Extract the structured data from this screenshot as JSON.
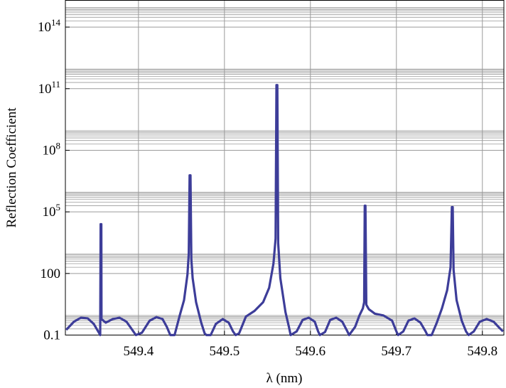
{
  "chart_data": {
    "type": "line",
    "title": "",
    "xlabel": "λ (nm)",
    "ylabel": "Reflection Coefficient",
    "xlim": [
      549.315,
      549.825
    ],
    "ylim": [
      0.1,
      2000000000000000.0
    ],
    "y_scale": "log",
    "grid": true,
    "x_ticks": [
      549.4,
      549.5,
      549.6,
      549.7,
      549.8
    ],
    "x_tick_labels": [
      "549.4",
      "549.5",
      "549.6",
      "549.7",
      "549.8"
    ],
    "y_ticks": [
      0.1,
      100,
      100000,
      100000000,
      100000000000,
      100000000000000
    ],
    "y_tick_labels": [
      {
        "base": "0.1",
        "exp": ""
      },
      {
        "base": "100",
        "exp": ""
      },
      {
        "base": "10",
        "exp": "5"
      },
      {
        "base": "10",
        "exp": "8"
      },
      {
        "base": "10",
        "exp": "11"
      },
      {
        "base": "10",
        "exp": "14"
      }
    ],
    "line_color": "#3d3d99",
    "series": [
      {
        "name": "",
        "points": [
          [
            549.316,
            0.18
          ],
          [
            549.325,
            0.45
          ],
          [
            549.333,
            0.7
          ],
          [
            549.341,
            0.65
          ],
          [
            549.348,
            0.35
          ],
          [
            549.3545,
            0.12
          ],
          [
            549.3555,
            0.1
          ],
          [
            549.356,
            25000
          ],
          [
            549.3568,
            25000
          ],
          [
            549.357,
            0.6
          ],
          [
            549.362,
            0.4
          ],
          [
            549.37,
            0.6
          ],
          [
            549.378,
            0.7
          ],
          [
            549.386,
            0.45
          ],
          [
            549.392,
            0.2
          ],
          [
            549.397,
            0.1
          ],
          [
            549.404,
            0.13
          ],
          [
            549.413,
            0.5
          ],
          [
            549.421,
            0.75
          ],
          [
            549.428,
            0.6
          ],
          [
            549.433,
            0.25
          ],
          [
            549.437,
            0.1
          ],
          [
            549.442,
            0.1
          ],
          [
            549.448,
            0.9
          ],
          [
            549.453,
            5
          ],
          [
            549.457,
            90
          ],
          [
            549.4585,
            900
          ],
          [
            549.4595,
            6000000
          ],
          [
            549.4605,
            6000000
          ],
          [
            549.4615,
            500
          ],
          [
            549.463,
            60
          ],
          [
            549.467,
            4
          ],
          [
            549.473,
            0.4
          ],
          [
            549.477,
            0.12
          ],
          [
            549.479,
            0.1
          ],
          [
            549.484,
            0.1
          ],
          [
            549.49,
            0.35
          ],
          [
            549.498,
            0.6
          ],
          [
            549.505,
            0.4
          ],
          [
            549.51,
            0.15
          ],
          [
            549.513,
            0.1
          ],
          [
            549.517,
            0.12
          ],
          [
            549.525,
            0.8
          ],
          [
            549.535,
            1.5
          ],
          [
            549.545,
            4
          ],
          [
            549.552,
            20
          ],
          [
            549.557,
            300
          ],
          [
            549.5595,
            5000
          ],
          [
            549.5605,
            150000000000.0
          ],
          [
            549.5615,
            150000000000.0
          ],
          [
            549.5625,
            3000
          ],
          [
            549.565,
            60
          ],
          [
            549.571,
            1.3
          ],
          [
            549.575,
            0.25
          ],
          [
            549.577,
            0.1
          ],
          [
            549.584,
            0.15
          ],
          [
            549.591,
            0.55
          ],
          [
            549.598,
            0.7
          ],
          [
            549.605,
            0.45
          ],
          [
            549.609,
            0.15
          ],
          [
            549.611,
            0.1
          ],
          [
            549.617,
            0.14
          ],
          [
            549.623,
            0.55
          ],
          [
            549.63,
            0.7
          ],
          [
            549.637,
            0.45
          ],
          [
            549.643,
            0.15
          ],
          [
            549.645,
            0.1
          ],
          [
            549.652,
            0.25
          ],
          [
            549.657,
            0.9
          ],
          [
            549.661,
            2
          ],
          [
            549.6625,
            4
          ],
          [
            549.6632,
            200000
          ],
          [
            549.664,
            200000
          ],
          [
            549.665,
            3
          ],
          [
            549.668,
            1.8
          ],
          [
            549.675,
            1.1
          ],
          [
            549.685,
            0.9
          ],
          [
            549.695,
            0.5
          ],
          [
            549.7,
            0.15
          ],
          [
            549.702,
            0.1
          ],
          [
            549.708,
            0.15
          ],
          [
            549.714,
            0.5
          ],
          [
            549.721,
            0.65
          ],
          [
            549.728,
            0.4
          ],
          [
            549.734,
            0.15
          ],
          [
            549.736,
            0.1
          ],
          [
            549.741,
            0.1
          ],
          [
            549.747,
            0.4
          ],
          [
            549.753,
            2
          ],
          [
            549.759,
            15
          ],
          [
            549.763,
            200
          ],
          [
            549.7645,
            170000
          ],
          [
            549.7655,
            170000
          ],
          [
            549.7665,
            150
          ],
          [
            549.77,
            5
          ],
          [
            549.776,
            0.5
          ],
          [
            549.781,
            0.15
          ],
          [
            549.784,
            0.1
          ],
          [
            549.79,
            0.15
          ],
          [
            549.797,
            0.45
          ],
          [
            549.805,
            0.6
          ],
          [
            549.813,
            0.45
          ],
          [
            549.82,
            0.22
          ],
          [
            549.824,
            0.15
          ]
        ]
      }
    ]
  }
}
